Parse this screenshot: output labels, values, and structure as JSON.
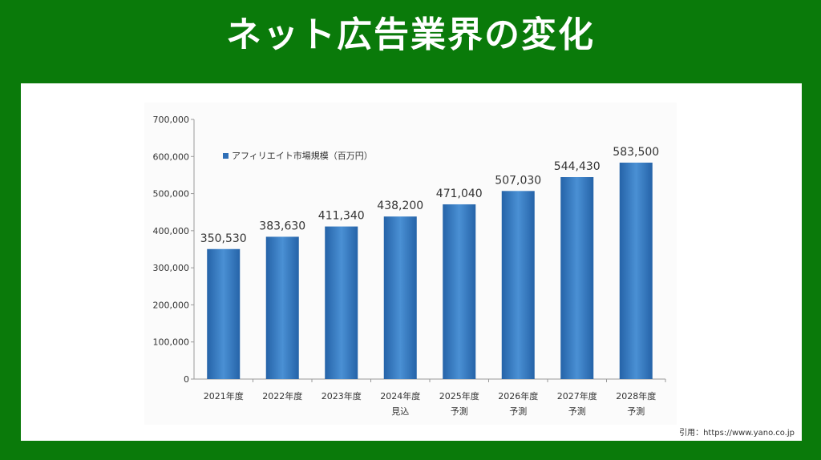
{
  "header": {
    "title": "ネット広告業界の変化"
  },
  "citation": "引用：https://www.yano.co.jp",
  "colors": {
    "background": "#0a7a0a",
    "bar_dark": "#2563a8",
    "bar_light": "#4a90d4"
  },
  "chart_data": {
    "type": "bar",
    "title": "",
    "categories": [
      "2021年度",
      "2022年度",
      "2023年度",
      "2024年度",
      "2025年度",
      "2026年度",
      "2027年度",
      "2028年度"
    ],
    "category_sublabels": [
      "",
      "",
      "",
      "見込",
      "予測",
      "予測",
      "予測",
      "予測"
    ],
    "series": [
      {
        "name": "アフィリエイト市場規模（百万円）",
        "values": [
          350530,
          383630,
          411340,
          438200,
          471040,
          507030,
          544430,
          583500
        ]
      }
    ],
    "value_labels": [
      "350,530",
      "383,630",
      "411,340",
      "438,200",
      "471,040",
      "507,030",
      "544,430",
      "583,500"
    ],
    "ylim": [
      0,
      700000
    ],
    "yticks": [
      0,
      100000,
      200000,
      300000,
      400000,
      500000,
      600000,
      700000
    ],
    "ytick_labels": [
      "0",
      "100,000",
      "200,000",
      "300,000",
      "400,000",
      "500,000",
      "600,000",
      "700,000"
    ],
    "legend_position": "top-left",
    "xlabel": "",
    "ylabel": ""
  }
}
